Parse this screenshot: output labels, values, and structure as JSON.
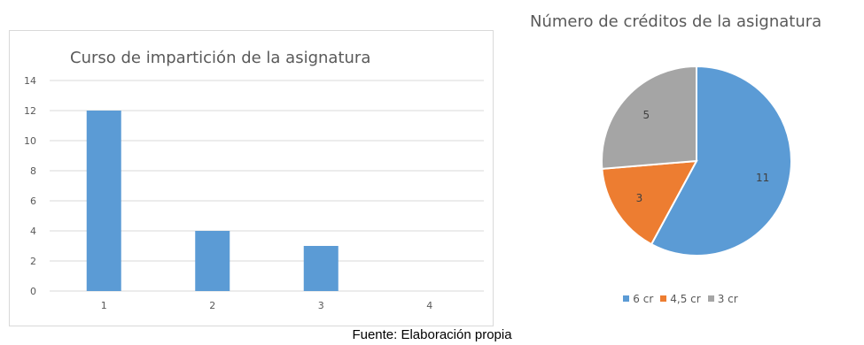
{
  "chart_data": [
    {
      "type": "bar",
      "title": "Curso de impartición de la asignatura",
      "categories": [
        "1",
        "2",
        "3",
        "4"
      ],
      "values": [
        12,
        4,
        3,
        0
      ],
      "ylim": [
        0,
        14
      ],
      "yticks": [
        "0",
        "2",
        "4",
        "6",
        "8",
        "10",
        "12",
        "14"
      ],
      "grid": true,
      "color": "#5b9bd5"
    },
    {
      "type": "pie",
      "title": "Número de créditos de la asignatura",
      "slices": [
        {
          "label": "6 cr",
          "value": 11,
          "color": "#5b9bd5"
        },
        {
          "label": "4,5 cr",
          "value": 3,
          "color": "#ed7d31"
        },
        {
          "label": "3 cr",
          "value": 5,
          "color": "#a5a5a5"
        }
      ],
      "legend": "bottom"
    }
  ],
  "caption": "Fuente: Elaboración propia"
}
